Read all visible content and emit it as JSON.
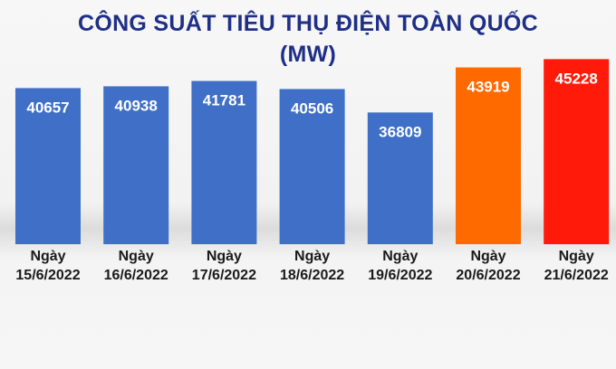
{
  "chart_data": {
    "type": "bar",
    "title": "CÔNG SUẤT TIÊU THỤ ĐIỆN TOÀN QUỐC",
    "unit": "(MW)",
    "categories": [
      [
        "Ngày",
        "15/6/2022"
      ],
      [
        "Ngày",
        "16/6/2022"
      ],
      [
        "Ngày",
        "17/6/2022"
      ],
      [
        "Ngày",
        "18/6/2022"
      ],
      [
        "Ngày",
        "19/6/2022"
      ],
      [
        "Ngày",
        "20/6/2022"
      ],
      [
        "Ngày",
        "21/6/2022"
      ]
    ],
    "values": [
      40657,
      40938,
      41781,
      40506,
      36809,
      43919,
      45228
    ],
    "colors": [
      "#3f6fc6",
      "#3f6fc6",
      "#3f6fc6",
      "#3f6fc6",
      "#3f6fc6",
      "#ff6a00",
      "#ff1a0a"
    ],
    "label_colors": [
      "#ffffff",
      "#ffffff",
      "#ffffff",
      "#ffffff",
      "#ffffff",
      "#ffffff",
      "#ffffff"
    ],
    "ylim": [
      0,
      46000
    ],
    "grid": false,
    "legend": "none"
  }
}
